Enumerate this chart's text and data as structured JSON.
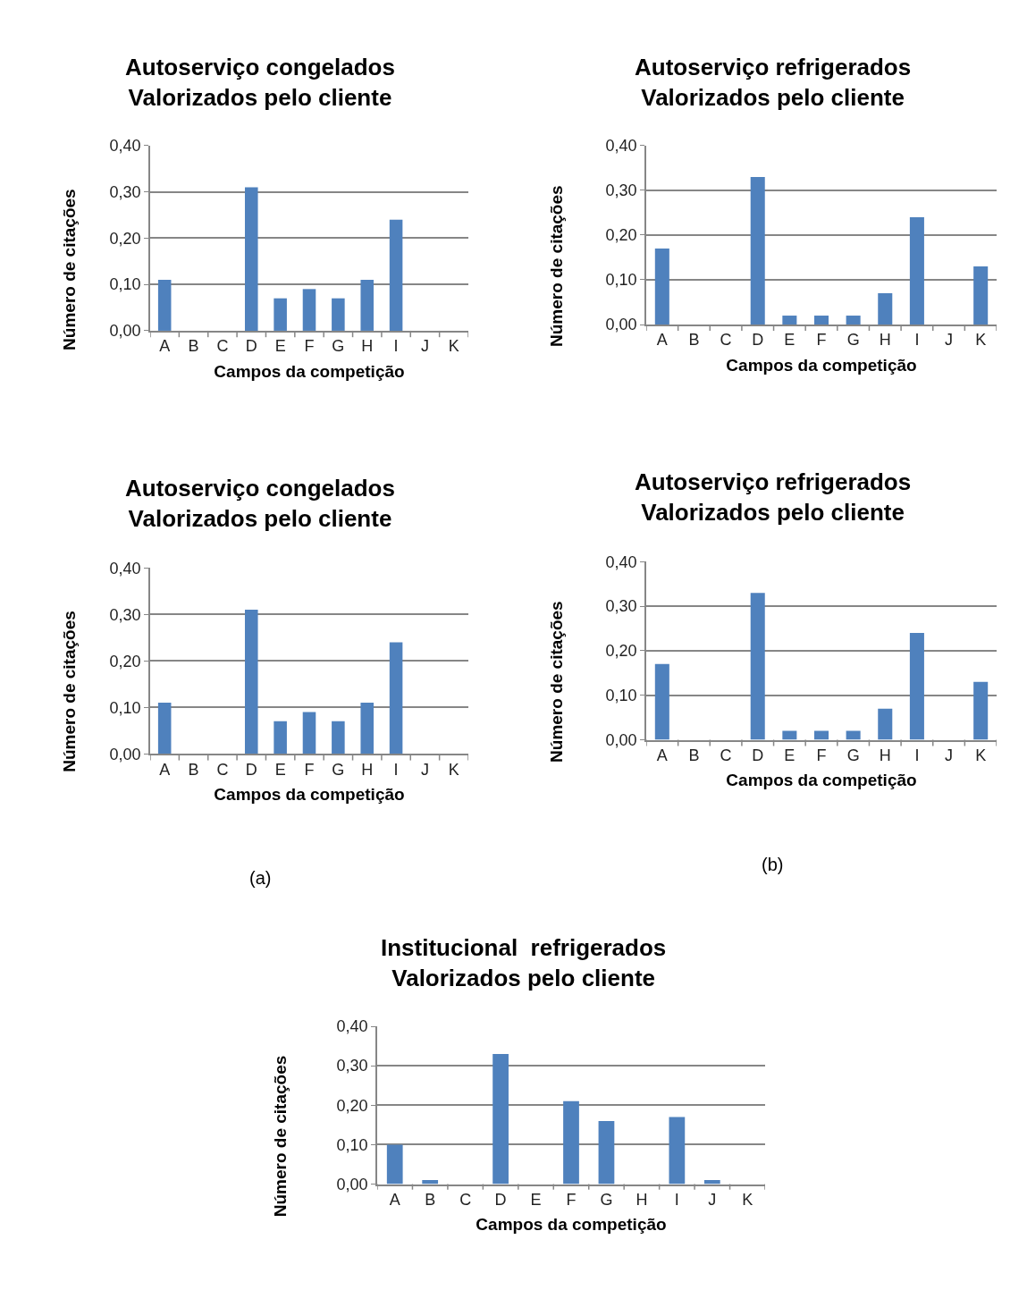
{
  "chart_data": [
    {
      "type": "bar",
      "title": "Autoserviço congelados\nValorizados pelo cliente",
      "xlabel": "Campos da competição",
      "ylabel": "Número de citações",
      "categories": [
        "A",
        "B",
        "C",
        "D",
        "E",
        "F",
        "G",
        "H",
        "I",
        "J",
        "K"
      ],
      "values": [
        0.11,
        0,
        0,
        0.31,
        0.07,
        0.09,
        0.07,
        0.11,
        0.24,
        0,
        0
      ],
      "color": "#4f81bd",
      "ylim": [
        0,
        0.4
      ],
      "yticks": [
        {
          "value": 0,
          "label": "0,00"
        },
        {
          "value": 0.1,
          "label": "0,10"
        },
        {
          "value": 0.2,
          "label": "0,20"
        },
        {
          "value": 0.3,
          "label": "0,30"
        },
        {
          "value": 0.4,
          "label": "0,40"
        }
      ],
      "grid": "y",
      "legend": false
    },
    {
      "type": "bar",
      "title": "Autoserviço congelados\nValorizados pelo cliente",
      "xlabel": "Campos da competição",
      "ylabel": "Número de citações",
      "categories": [
        "A",
        "B",
        "C",
        "D",
        "E",
        "F",
        "G",
        "H",
        "I",
        "J",
        "K"
      ],
      "values": [
        0.11,
        0,
        0,
        0.31,
        0.07,
        0.09,
        0.07,
        0.11,
        0.24,
        0,
        0
      ],
      "color": "#4f81bd",
      "ylim": [
        0,
        0.4
      ],
      "yticks": [
        {
          "value": 0,
          "label": "0,00"
        },
        {
          "value": 0.1,
          "label": "0,10"
        },
        {
          "value": 0.2,
          "label": "0,20"
        },
        {
          "value": 0.3,
          "label": "0,30"
        },
        {
          "value": 0.4,
          "label": "0,40"
        }
      ],
      "grid": "y",
      "legend": false,
      "annotations": [
        "(a)"
      ]
    },
    {
      "type": "bar",
      "title": "Autoserviço refrigerados\nValorizados pelo cliente",
      "xlabel": "Campos da competição",
      "ylabel": "Número de citações",
      "categories": [
        "A",
        "B",
        "C",
        "D",
        "E",
        "F",
        "G",
        "H",
        "I",
        "J",
        "K"
      ],
      "values": [
        0.17,
        0,
        0,
        0.33,
        0.02,
        0.02,
        0.02,
        0.07,
        0.24,
        0,
        0.13
      ],
      "color": "#4f81bd",
      "ylim": [
        0,
        0.4
      ],
      "yticks": [
        {
          "value": 0,
          "label": "0,00"
        },
        {
          "value": 0.1,
          "label": "0,10"
        },
        {
          "value": 0.2,
          "label": "0,20"
        },
        {
          "value": 0.3,
          "label": "0,30"
        },
        {
          "value": 0.4,
          "label": "0,40"
        }
      ],
      "grid": "y",
      "legend": false
    },
    {
      "type": "bar",
      "title": "Autoserviço refrigerados\nValorizados pelo cliente",
      "xlabel": "Campos da competição",
      "ylabel": "Número de citações",
      "categories": [
        "A",
        "B",
        "C",
        "D",
        "E",
        "F",
        "G",
        "H",
        "I",
        "J",
        "K"
      ],
      "values": [
        0.17,
        0,
        0,
        0.33,
        0.02,
        0.02,
        0.02,
        0.07,
        0.24,
        0,
        0.13
      ],
      "color": "#4f81bd",
      "ylim": [
        0,
        0.4
      ],
      "yticks": [
        {
          "value": 0,
          "label": "0,00"
        },
        {
          "value": 0.1,
          "label": "0,10"
        },
        {
          "value": 0.2,
          "label": "0,20"
        },
        {
          "value": 0.3,
          "label": "0,30"
        },
        {
          "value": 0.4,
          "label": "0,40"
        }
      ],
      "grid": "y",
      "legend": false,
      "annotations": [
        "(b)"
      ]
    },
    {
      "type": "bar",
      "title": "Institucional  refrigerados\nValorizados pelo cliente",
      "xlabel": "Campos da competição",
      "ylabel": "Número de citações",
      "categories": [
        "A",
        "B",
        "C",
        "D",
        "E",
        "F",
        "G",
        "H",
        "I",
        "J",
        "K"
      ],
      "values": [
        0.1,
        0.01,
        0,
        0.33,
        0,
        0.21,
        0.16,
        0,
        0.17,
        0.01,
        0
      ],
      "color": "#4f81bd",
      "ylim": [
        0,
        0.4
      ],
      "yticks": [
        {
          "value": 0,
          "label": "0,00"
        },
        {
          "value": 0.1,
          "label": "0,10"
        },
        {
          "value": 0.2,
          "label": "0,20"
        },
        {
          "value": 0.3,
          "label": "0,30"
        },
        {
          "value": 0.4,
          "label": "0,40"
        }
      ],
      "grid": "y",
      "legend": false
    }
  ]
}
